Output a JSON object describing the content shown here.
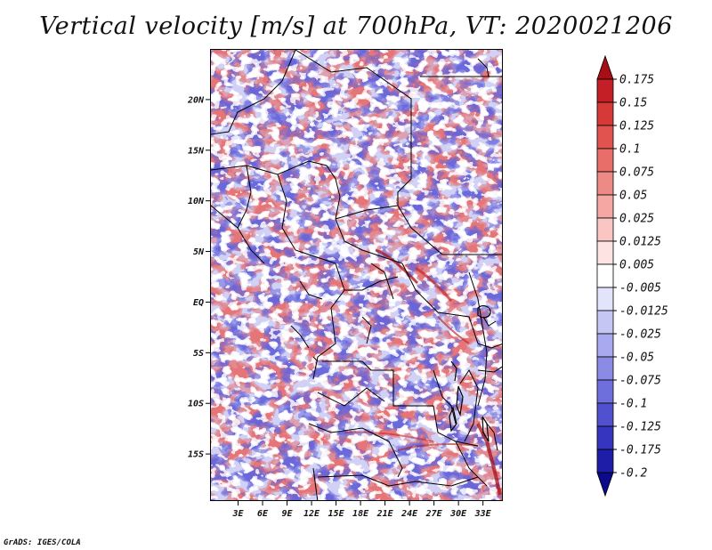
{
  "title": "Vertical velocity [m/s] at 700hPa, VT: 2020021206",
  "footer": "GrADS: IGES/COLA",
  "map": {
    "region_lon_range": [
      0,
      35
    ],
    "region_lat_range": [
      -20,
      25
    ],
    "lat_ticks": [
      {
        "value": 20,
        "label": "20N"
      },
      {
        "value": 15,
        "label": "15N"
      },
      {
        "value": 10,
        "label": "10N"
      },
      {
        "value": 5,
        "label": "5N"
      },
      {
        "value": 0,
        "label": "EQ"
      },
      {
        "value": -5,
        "label": "5S"
      },
      {
        "value": -10,
        "label": "10S"
      },
      {
        "value": -15,
        "label": "15S"
      }
    ],
    "lon_ticks": [
      {
        "value": 3,
        "label": "3E"
      },
      {
        "value": 6,
        "label": "6E"
      },
      {
        "value": 9,
        "label": "9E"
      },
      {
        "value": 12,
        "label": "12E"
      },
      {
        "value": 15,
        "label": "15E"
      },
      {
        "value": 18,
        "label": "18E"
      },
      {
        "value": 21,
        "label": "21E"
      },
      {
        "value": 24,
        "label": "24E"
      },
      {
        "value": 27,
        "label": "27E"
      },
      {
        "value": 30,
        "label": "30E"
      },
      {
        "value": 33,
        "label": "33E"
      }
    ]
  },
  "colorbar": {
    "labels": [
      "0.175",
      "0.15",
      "0.125",
      "0.1",
      "0.075",
      "0.05",
      "0.025",
      "0.0125",
      "0.005",
      "-0.005",
      "-0.0125",
      "-0.025",
      "-0.05",
      "-0.075",
      "-0.1",
      "-0.125",
      "-0.175",
      "-0.2"
    ],
    "colors": [
      "#a50f15",
      "#c41f26",
      "#d63a38",
      "#e0534f",
      "#e76e69",
      "#ee8a86",
      "#f4a7a3",
      "#f9c6c3",
      "#fde3e1",
      "#ffffff",
      "#e3e3fb",
      "#c6c6f5",
      "#a9a9ef",
      "#8b8be6",
      "#6e6edd",
      "#5151cf",
      "#3535bf",
      "#1d1da8",
      "#0a0a8a"
    ]
  }
}
